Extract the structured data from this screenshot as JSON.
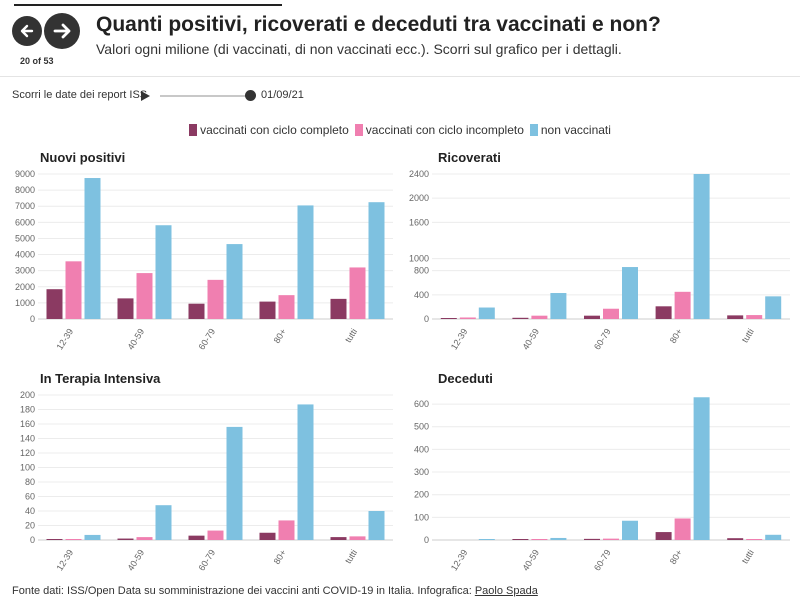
{
  "nav": {
    "counter": "20 of 53"
  },
  "header": {
    "title": "Quanti positivi, ricoverati e deceduti tra vaccinati e non?",
    "subtitle": "Valori ogni milione (di vaccinati, di non vaccinati ecc.). Scorri sul grafico per i dettagli."
  },
  "slider": {
    "label": "Scorri le date dei report ISS",
    "date": "01/09/21"
  },
  "colors": {
    "complete": "#8b3a62",
    "incomplete": "#f07fb0",
    "none": "#7ec1e0"
  },
  "legend": [
    {
      "label": "vaccinati con ciclo completo",
      "color": "#8b3a62"
    },
    {
      "label": "vaccinati con ciclo incompleto",
      "color": "#f07fb0"
    },
    {
      "label": "non vaccinati",
      "color": "#7ec1e0"
    }
  ],
  "footer": {
    "text": "Fonte dati: ISS/Open Data su somministrazione dei vaccini anti COVID-19 in Italia. Infografica: ",
    "author": "Paolo Spada"
  },
  "chart_data": [
    {
      "type": "bar",
      "title": "Nuovi positivi",
      "categories": [
        "12-39",
        "40-59",
        "60-79",
        "80+",
        "tutti"
      ],
      "yticks": [
        0,
        1000,
        2000,
        3000,
        4000,
        5000,
        6000,
        7000,
        8000,
        9000
      ],
      "ylim": [
        0,
        9000
      ],
      "series": [
        {
          "name": "vaccinati con ciclo completo",
          "values": [
            1850,
            1280,
            950,
            1080,
            1250
          ]
        },
        {
          "name": "vaccinati con ciclo incompleto",
          "values": [
            3580,
            2850,
            2430,
            1480,
            3200
          ]
        },
        {
          "name": "non vaccinati",
          "values": [
            8750,
            5820,
            4650,
            7050,
            7250
          ]
        }
      ]
    },
    {
      "type": "bar",
      "title": "Ricoverati",
      "categories": [
        "12-39",
        "40-59",
        "60-79",
        "80+",
        "tutti"
      ],
      "yticks": [
        0,
        400,
        800,
        1000,
        1600,
        2000,
        2400
      ],
      "ylim": [
        0,
        2400
      ],
      "series": [
        {
          "name": "vaccinati con ciclo completo",
          "values": [
            15,
            20,
            55,
            210,
            60
          ]
        },
        {
          "name": "vaccinati con ciclo incompleto",
          "values": [
            25,
            55,
            170,
            450,
            65
          ]
        },
        {
          "name": "non vaccinati",
          "values": [
            190,
            430,
            860,
            2400,
            375
          ]
        }
      ]
    },
    {
      "type": "bar",
      "title": "In Terapia Intensiva",
      "categories": [
        "12-39",
        "40-59",
        "60-79",
        "80+",
        "tutti"
      ],
      "yticks": [
        0,
        20,
        40,
        60,
        80,
        100,
        120,
        140,
        160,
        180,
        200
      ],
      "ylim": [
        0,
        200
      ],
      "series": [
        {
          "name": "vaccinati con ciclo completo",
          "values": [
            0.5,
            2,
            6,
            10,
            4
          ]
        },
        {
          "name": "vaccinati con ciclo incompleto",
          "values": [
            1,
            4,
            13,
            27,
            5
          ]
        },
        {
          "name": "non vaccinati",
          "values": [
            7,
            48,
            156,
            187,
            40
          ]
        }
      ]
    },
    {
      "type": "bar",
      "title": "Deceduti",
      "categories": [
        "12-39",
        "40-59",
        "60-79",
        "80+",
        "tutti"
      ],
      "yticks": [
        0,
        100,
        200,
        300,
        400,
        500,
        600
      ],
      "ylim": [
        0,
        640
      ],
      "series": [
        {
          "name": "vaccinati con ciclo completo",
          "values": [
            0,
            1,
            5,
            35,
            8
          ]
        },
        {
          "name": "vaccinati con ciclo incompleto",
          "values": [
            0,
            2,
            6,
            95,
            3
          ]
        },
        {
          "name": "non vaccinati",
          "values": [
            1,
            9,
            85,
            630,
            23
          ]
        }
      ]
    }
  ]
}
